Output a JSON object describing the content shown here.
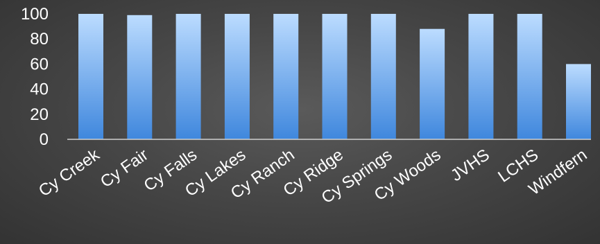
{
  "chart_data": {
    "type": "bar",
    "categories": [
      "Cy Creek",
      "Cy Fair",
      "Cy Falls",
      "Cy Lakes",
      "Cy Ranch",
      "Cy Ridge",
      "Cy Springs",
      "Cy Woods",
      "JVHS",
      "LCHS",
      "Windfern"
    ],
    "values": [
      100,
      99,
      100,
      100,
      100,
      100,
      100,
      88,
      100,
      100,
      60
    ],
    "title": "",
    "xlabel": "",
    "ylabel": "",
    "ylim": [
      0,
      100
    ],
    "yticks": [
      0,
      20,
      40,
      60,
      80,
      100
    ],
    "grid": false,
    "legend": "none",
    "colors": {
      "bar_top": "#bcdcff",
      "bar_bottom": "#3f87dd",
      "axis": "#d0d0d0",
      "text": "#ffffff"
    }
  }
}
